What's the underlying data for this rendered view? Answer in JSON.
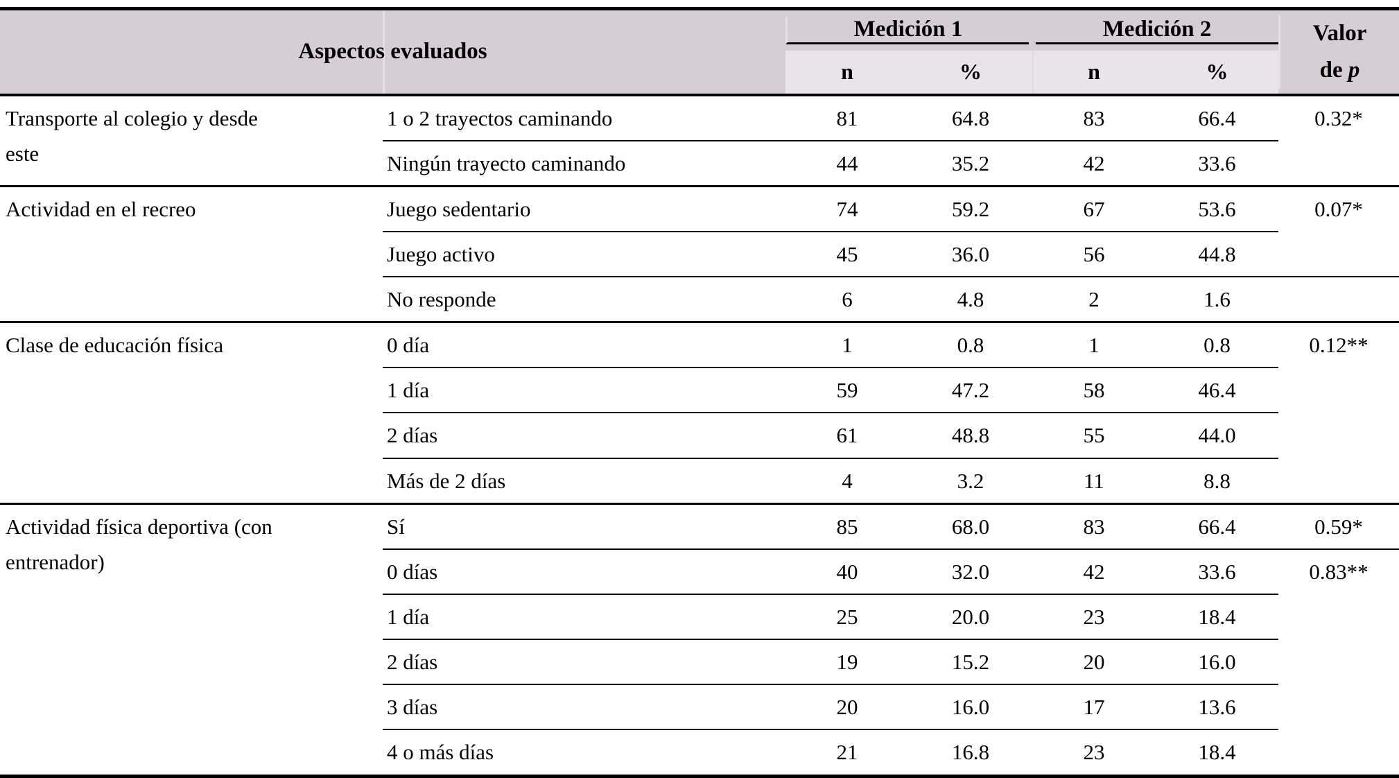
{
  "table": {
    "header": {
      "aspect_label": "Aspectos evaluados",
      "measurement1": "Medición 1",
      "measurement2": "Medición 2",
      "p_line1": "Valor",
      "p_line2_prefix": "de ",
      "p_symbol": "p",
      "sub_n1": "n",
      "sub_pct1": "%",
      "sub_n2": "n",
      "sub_pct2": "%"
    },
    "colors": {
      "header_bg": "#d7cdd4",
      "subheader_bg": "#e9e4e9",
      "rule_color": "#000000"
    },
    "groups": [
      {
        "aspect": "Transporte al colegio y desde este",
        "p_values": [
          "0.32*"
        ],
        "rows": [
          {
            "label": "1 o 2 trayectos caminando",
            "n1": "81",
            "pct1": "64.8",
            "n2": "83",
            "pct2": "66.4"
          },
          {
            "label": "Ningún trayecto caminando",
            "n1": "44",
            "pct1": "35.2",
            "n2": "42",
            "pct2": "33.6"
          }
        ]
      },
      {
        "aspect": "Actividad en el recreo",
        "p_values": [
          "0.07*"
        ],
        "rows": [
          {
            "label": "Juego sedentario",
            "n1": "74",
            "pct1": "59.2",
            "n2": "67",
            "pct2": "53.6"
          },
          {
            "label": "Juego activo",
            "n1": "45",
            "pct1": "36.0",
            "n2": "56",
            "pct2": "44.8"
          },
          {
            "label": "No responde",
            "n1": "6",
            "pct1": "4.8",
            "n2": "2",
            "pct2": "1.6"
          }
        ]
      },
      {
        "aspect": "Clase de educación física",
        "p_values": [
          "0.12**"
        ],
        "rows": [
          {
            "label": "0 día",
            "n1": "1",
            "pct1": "0.8",
            "n2": "1",
            "pct2": "0.8"
          },
          {
            "label": "1 día",
            "n1": "59",
            "pct1": "47.2",
            "n2": "58",
            "pct2": "46.4"
          },
          {
            "label": "2 días",
            "n1": "61",
            "pct1": "48.8",
            "n2": "55",
            "pct2": "44.0"
          },
          {
            "label": "Más de 2 días",
            "n1": "4",
            "pct1": "3.2",
            "n2": "11",
            "pct2": "8.8"
          }
        ]
      },
      {
        "aspect": "Actividad física deportiva (con entrenador)",
        "p_values": [
          "0.59*",
          "0.83**"
        ],
        "rows": [
          {
            "label": "Sí",
            "n1": "85",
            "pct1": "68.0",
            "n2": "83",
            "pct2": "66.4"
          },
          {
            "label": "0 días",
            "n1": "40",
            "pct1": "32.0",
            "n2": "42",
            "pct2": "33.6"
          },
          {
            "label": "1 día",
            "n1": "25",
            "pct1": "20.0",
            "n2": "23",
            "pct2": "18.4"
          },
          {
            "label": "2 días",
            "n1": "19",
            "pct1": "15.2",
            "n2": "20",
            "pct2": "16.0"
          },
          {
            "label": "3 días",
            "n1": "20",
            "pct1": "16.0",
            "n2": "17",
            "pct2": "13.6"
          },
          {
            "label": "4 o más días",
            "n1": "21",
            "pct1": "16.8",
            "n2": "23",
            "pct2": "18.4"
          }
        ]
      }
    ]
  }
}
